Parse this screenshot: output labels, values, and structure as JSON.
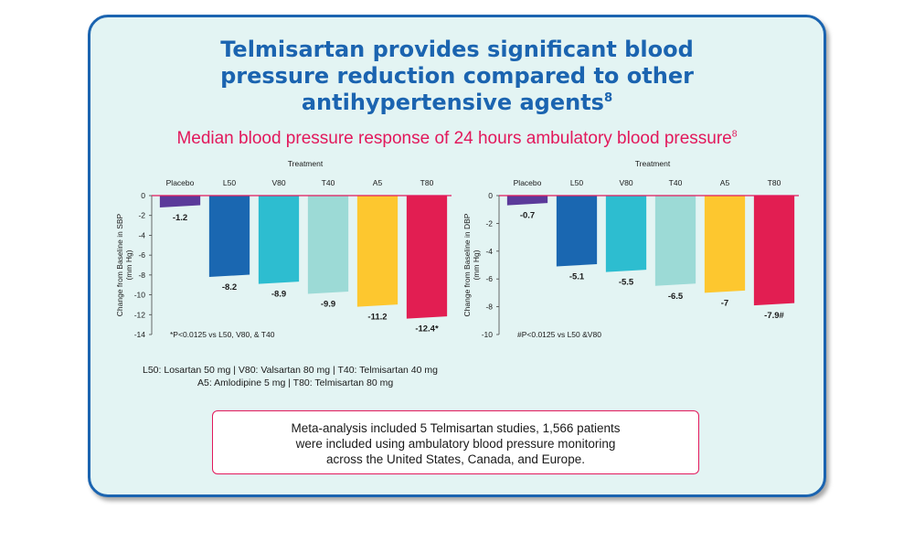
{
  "title": {
    "line1": "Telmisartan provides significant blood",
    "line2": "pressure reduction compared to other",
    "line3": "antihypertensive agents",
    "sup": "8"
  },
  "subtitle": {
    "text": "Median blood pressure response of 24 hours ambulatory blood pressure",
    "sup": "8"
  },
  "colors": {
    "brand_blue": "#1b64b0",
    "accent_pink": "#e2185b",
    "Placebo": "#5b3a9a",
    "L50": "#1a67b1",
    "V80": "#2dbdd0",
    "T40": "#9cdad6",
    "A5": "#fdc72f",
    "T80": "#e21e52"
  },
  "chart_data": [
    {
      "type": "bar",
      "title": "Treatment",
      "ylabel": "Change from Baseline in SBP (mm Hg)",
      "categories": [
        "Placebo",
        "L50",
        "V80",
        "T40",
        "A5",
        "T80"
      ],
      "values": [
        -1.2,
        -8.2,
        -8.9,
        -9.9,
        -11.2,
        -12.4
      ],
      "value_labels": [
        "-1.2",
        "-8.2",
        "-8.9",
        "-9.9",
        "-11.2",
        "-12.4*"
      ],
      "yticks": [
        "0",
        "-2",
        "-4",
        "-6",
        "-8",
        "-10",
        "-12",
        "-14"
      ],
      "ylim": [
        -14,
        0
      ],
      "footnote": "*P<0.0125 vs L50, V80, & T40"
    },
    {
      "type": "bar",
      "title": "Treatment",
      "ylabel": "Change from Baseline in DBP (mm Hg)",
      "categories": [
        "Placebo",
        "L50",
        "V80",
        "T40",
        "A5",
        "T80"
      ],
      "values": [
        -0.7,
        -5.1,
        -5.5,
        -6.5,
        -7,
        -7.9
      ],
      "value_labels": [
        "-0.7",
        "-5.1",
        "-5.5",
        "-6.5",
        "-7",
        "-7.9#"
      ],
      "yticks": [
        "0",
        "-2",
        "-4",
        "-6",
        "-8",
        "-10"
      ],
      "ylim": [
        -10,
        0
      ],
      "footnote": "#P<0.0125 vs L50 &V80"
    }
  ],
  "legend": {
    "line1": "L50: Losartan 50 mg | V80: Valsartan 80 mg | T40: Telmisartan 40 mg",
    "line2": "A5:  Amlodipine 5 mg | T80: Telmisartan 80 mg"
  },
  "meta_analysis": {
    "line1": "Meta-analysis included 5 Telmisartan studies, 1,566 patients",
    "line2": "were included using ambulatory blood pressure monitoring",
    "line3": "across the United States, Canada, and Europe."
  }
}
